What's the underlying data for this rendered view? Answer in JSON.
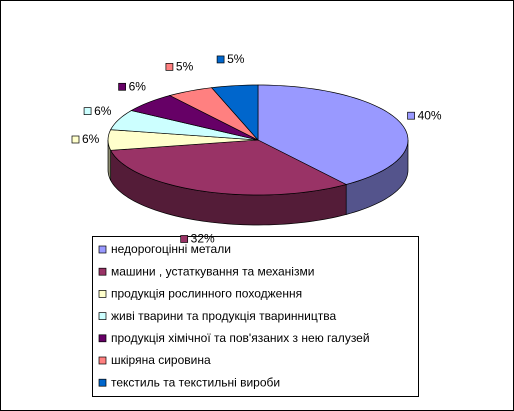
{
  "chart_data": {
    "type": "pie3d",
    "categories": [
      "недорогоцінні метали",
      "машини , устаткування та механізми",
      "продукція рослинного походження",
      "живі тварини та продукція тваринництва",
      "продукція хімічної та пов'язаних з нею галузей",
      "шкіряна сировина",
      "текстиль та текстильні вироби"
    ],
    "values": [
      40,
      32,
      6,
      6,
      6,
      5,
      5
    ],
    "value_labels": [
      "40%",
      "32%",
      "6%",
      "6%",
      "6%",
      "5%",
      "5%"
    ],
    "colors": [
      "#9999ff",
      "#993366",
      "#ffffcc",
      "#ccffff",
      "#660066",
      "#ff8080",
      "#0066cc"
    ],
    "legend": "bottom"
  }
}
